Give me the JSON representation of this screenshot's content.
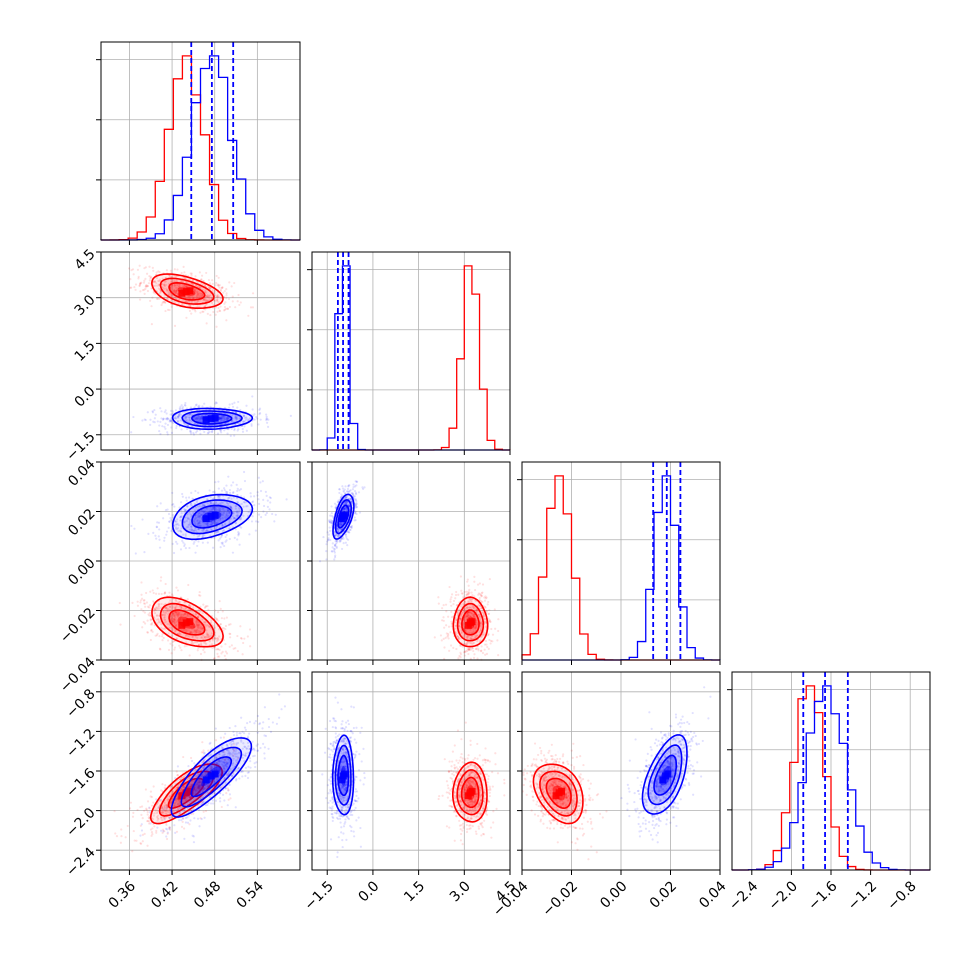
{
  "chart_data": {
    "type": "corner",
    "colors": {
      "red": "#ff0000",
      "blue": "#0000ff"
    },
    "series": [
      {
        "color": "#ff0000"
      },
      {
        "color": "#0000ff"
      }
    ],
    "dims": [
      {
        "range": [
          0.32,
          0.6
        ],
        "ticks": [
          0.36,
          0.42,
          0.48,
          0.54
        ],
        "tick_labels": [
          "0.36",
          "0.42",
          "0.48",
          "0.54"
        ]
      },
      {
        "range": [
          -2.0,
          4.5
        ],
        "ticks": [
          -1.5,
          0.0,
          1.5,
          3.0,
          4.5
        ],
        "tick_labels": [
          "−1.5",
          "0.0",
          "1.5",
          "3.0",
          "4.5"
        ]
      },
      {
        "range": [
          -0.04,
          0.04
        ],
        "ticks": [
          -0.04,
          -0.02,
          0.0,
          0.02,
          0.04
        ],
        "tick_labels": [
          "−0.04",
          "−0.02",
          "0.00",
          "0.02",
          "0.04"
        ]
      },
      {
        "range": [
          -2.6,
          -0.6
        ],
        "ticks": [
          -2.4,
          -2.0,
          -1.6,
          -1.2,
          -0.8
        ],
        "tick_labels": [
          "−2.4",
          "−2.0",
          "−1.6",
          "−1.2",
          "−0.8"
        ]
      }
    ],
    "left_axis_ticks": [
      {
        "row": 1,
        "ticks": [
          -1.5,
          0.0,
          1.5,
          3.0,
          4.5
        ],
        "tick_labels": [
          "−1.5",
          "0.0",
          "1.5",
          "3.0",
          "4.5"
        ]
      },
      {
        "row": 2,
        "ticks": [
          -0.04,
          -0.02,
          0.0,
          0.02,
          0.04
        ],
        "tick_labels": [
          "−0.04",
          "−0.02",
          "0.00",
          "0.02",
          "0.04"
        ]
      },
      {
        "row": 3,
        "ticks": [
          -2.4,
          -2.0,
          -1.6,
          -1.2,
          -0.8
        ],
        "tick_labels": [
          "−2.4",
          "−2.0",
          "−1.6",
          "−1.2",
          "−0.8"
        ]
      }
    ],
    "red_means": [
      0.44,
      3.2,
      -0.025,
      -1.82
    ],
    "red_sds": [
      0.025,
      0.28,
      0.005,
      0.15
    ],
    "blue_means": [
      0.475,
      -0.97,
      0.018,
      -1.65
    ],
    "blue_sds": [
      0.028,
      0.17,
      0.0045,
      0.2
    ],
    "blue_quantiles": [
      [
        0.447,
        0.476,
        0.506
      ],
      [
        -1.15,
        -0.98,
        -0.8
      ],
      [
        0.013,
        0.0185,
        0.024
      ],
      [
        -1.88,
        -1.66,
        -1.43
      ]
    ],
    "grid": true
  }
}
